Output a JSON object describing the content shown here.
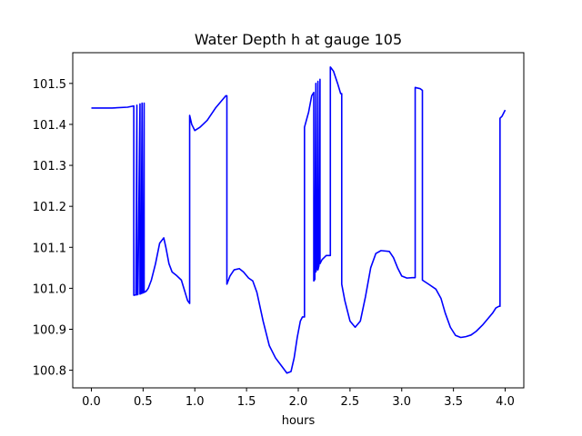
{
  "chart_data": {
    "type": "line",
    "title": "Water Depth h at gauge 105",
    "xlabel": "hours",
    "ylabel": "",
    "xlim": [
      -0.18,
      4.18
    ],
    "ylim": [
      100.757,
      101.575
    ],
    "xticks": [
      {
        "value": 0.0,
        "label": "0.0"
      },
      {
        "value": 0.5,
        "label": "0.5"
      },
      {
        "value": 1.0,
        "label": "1.0"
      },
      {
        "value": 1.5,
        "label": "1.5"
      },
      {
        "value": 2.0,
        "label": "2.0"
      },
      {
        "value": 2.5,
        "label": "2.5"
      },
      {
        "value": 3.0,
        "label": "3.0"
      },
      {
        "value": 3.5,
        "label": "3.5"
      },
      {
        "value": 4.0,
        "label": "4.0"
      }
    ],
    "yticks": [
      {
        "value": 100.8,
        "label": "100.8"
      },
      {
        "value": 100.9,
        "label": "100.9"
      },
      {
        "value": 101.0,
        "label": "101.0"
      },
      {
        "value": 101.1,
        "label": "101.1"
      },
      {
        "value": 101.2,
        "label": "101.2"
      },
      {
        "value": 101.3,
        "label": "101.3"
      },
      {
        "value": 101.4,
        "label": "101.4"
      },
      {
        "value": 101.5,
        "label": "101.5"
      }
    ],
    "grid": false,
    "legend": "none",
    "line_color": "#0000ff",
    "series": [
      {
        "x": [
          0.0,
          0.2,
          0.35,
          0.41,
          0.41,
          0.43,
          0.44,
          0.44,
          0.45,
          0.47,
          0.47,
          0.48,
          0.49,
          0.49,
          0.5,
          0.51,
          0.51,
          0.53,
          0.55,
          0.58,
          0.62,
          0.66,
          0.7,
          0.72,
          0.75,
          0.78,
          0.82,
          0.87,
          0.9,
          0.93,
          0.95,
          0.95,
          0.97,
          1.0,
          1.05,
          1.12,
          1.2,
          1.3,
          1.31,
          1.31,
          1.34,
          1.38,
          1.43,
          1.47,
          1.52,
          1.56,
          1.6,
          1.66,
          1.72,
          1.78,
          1.84,
          1.89,
          1.93,
          1.96,
          1.99,
          2.02,
          2.04,
          2.06,
          2.06,
          2.1,
          2.13,
          2.15,
          2.15,
          2.16,
          2.17,
          2.17,
          2.18,
          2.19,
          2.19,
          2.2,
          2.21,
          2.21,
          2.23,
          2.27,
          2.3,
          2.31,
          2.31,
          2.34,
          2.38,
          2.41,
          2.42,
          2.42,
          2.45,
          2.5,
          2.55,
          2.6,
          2.65,
          2.7,
          2.75,
          2.8,
          2.88,
          2.92,
          2.96,
          3.0,
          3.05,
          3.1,
          3.13,
          3.13,
          3.18,
          3.2,
          3.2,
          3.26,
          3.33,
          3.38,
          3.42,
          3.47,
          3.52,
          3.57,
          3.62,
          3.67,
          3.72,
          3.78,
          3.83,
          3.88,
          3.91,
          3.94,
          3.95,
          3.95,
          3.97,
          4.0
        ],
        "y": [
          101.44,
          101.44,
          101.442,
          101.445,
          100.983,
          100.984,
          101.447,
          100.984,
          100.985,
          101.45,
          100.986,
          100.987,
          101.452,
          100.988,
          100.989,
          101.452,
          100.99,
          100.993,
          101.0,
          101.02,
          101.06,
          101.11,
          101.123,
          101.1,
          101.06,
          101.04,
          101.032,
          101.02,
          100.995,
          100.97,
          100.963,
          101.422,
          101.4,
          101.385,
          101.393,
          101.41,
          101.44,
          101.47,
          101.47,
          101.01,
          101.03,
          101.045,
          101.048,
          101.04,
          101.025,
          101.018,
          100.99,
          100.92,
          100.86,
          100.83,
          100.81,
          100.793,
          100.797,
          100.83,
          100.88,
          100.92,
          100.93,
          100.93,
          101.393,
          101.43,
          101.47,
          101.478,
          101.018,
          101.022,
          101.5,
          101.04,
          101.05,
          101.505,
          101.045,
          101.055,
          101.51,
          101.06,
          101.07,
          101.08,
          101.08,
          101.08,
          101.54,
          101.53,
          101.5,
          101.475,
          101.475,
          101.01,
          100.97,
          100.92,
          100.905,
          100.92,
          100.98,
          101.05,
          101.085,
          101.092,
          101.09,
          101.075,
          101.05,
          101.03,
          101.025,
          101.026,
          101.026,
          101.49,
          101.487,
          101.483,
          101.02,
          101.01,
          100.998,
          100.975,
          100.94,
          100.905,
          100.885,
          100.88,
          100.882,
          100.886,
          100.895,
          100.91,
          100.925,
          100.94,
          100.952,
          100.956,
          100.956,
          101.415,
          101.42,
          101.435
        ]
      }
    ]
  }
}
